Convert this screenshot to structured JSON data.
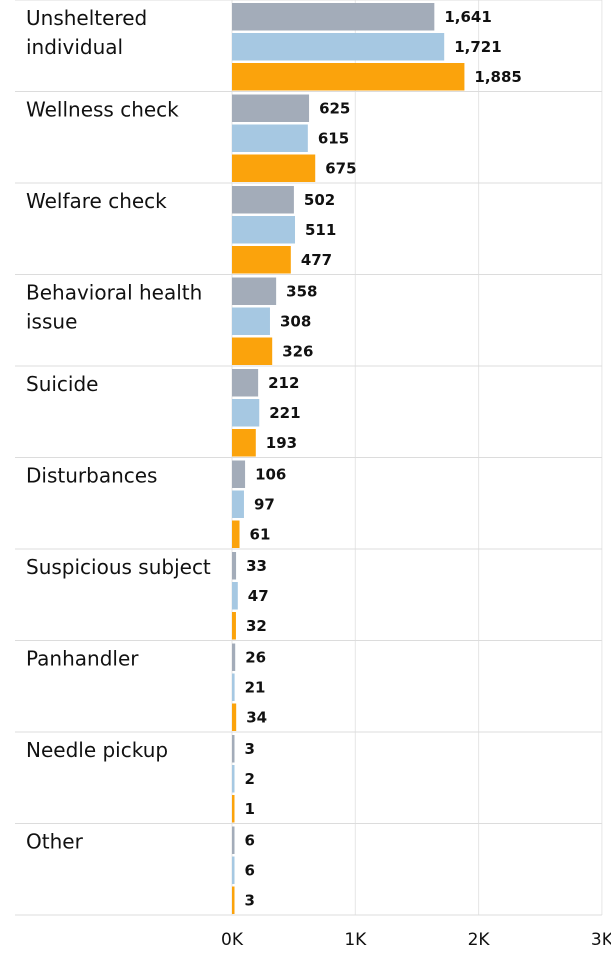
{
  "chart_data": {
    "type": "bar",
    "orientation": "horizontal",
    "categories": [
      [
        "Unsheltered",
        "individual"
      ],
      [
        "Wellness check"
      ],
      [
        "Welfare check"
      ],
      [
        "Behavioral health",
        "issue"
      ],
      [
        "Suicide"
      ],
      [
        "Disturbances"
      ],
      [
        "Suspicious subject"
      ],
      [
        "Panhandler"
      ],
      [
        "Needle pickup"
      ],
      [
        "Other"
      ]
    ],
    "series": [
      {
        "color": "#a3acb9",
        "values": [
          1641,
          625,
          502,
          358,
          212,
          106,
          33,
          26,
          3,
          6
        ],
        "labels": [
          "1,641",
          "625",
          "502",
          "358",
          "212",
          "106",
          "33",
          "26",
          "3",
          "6"
        ]
      },
      {
        "color": "#a6c8e2",
        "values": [
          1721,
          615,
          511,
          308,
          221,
          97,
          47,
          21,
          2,
          6
        ],
        "labels": [
          "1,721",
          "615",
          "511",
          "308",
          "221",
          "97",
          "47",
          "21",
          "2",
          "6"
        ]
      },
      {
        "color": "#fba30c",
        "values": [
          1885,
          675,
          477,
          326,
          193,
          61,
          32,
          34,
          1,
          3
        ],
        "labels": [
          "1,885",
          "675",
          "477",
          "326",
          "193",
          "61",
          "32",
          "34",
          "1",
          "3"
        ]
      }
    ],
    "xlim": [
      0,
      3000
    ],
    "xticks": [
      0,
      1000,
      2000,
      3000
    ],
    "xtick_labels": [
      "0K",
      "1K",
      "2K",
      "3K"
    ],
    "grid": true,
    "legend": "none"
  }
}
